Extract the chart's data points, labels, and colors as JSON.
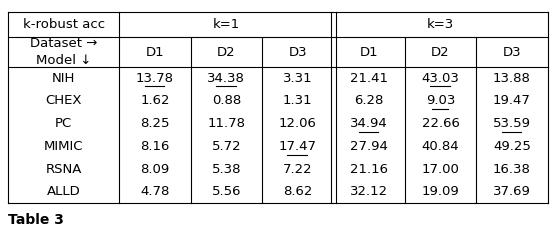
{
  "title": "Table 3",
  "rows": [
    [
      "NIH",
      "13.78",
      "34.38",
      "3.31",
      "21.41",
      "43.03",
      "13.88"
    ],
    [
      "CHEX",
      "1.62",
      "0.88",
      "1.31",
      "6.28",
      "9.03",
      "19.47"
    ],
    [
      "PC",
      "8.25",
      "11.78",
      "12.06",
      "34.94",
      "22.66",
      "53.59"
    ],
    [
      "MIMIC",
      "8.16",
      "5.72",
      "17.47",
      "27.94",
      "40.84",
      "49.25"
    ],
    [
      "RSNA",
      "8.09",
      "5.38",
      "7.22",
      "21.16",
      "17.00",
      "16.38"
    ],
    [
      "ALLD",
      "4.78",
      "5.56",
      "8.62",
      "32.12",
      "19.09",
      "37.69"
    ]
  ],
  "underlined": [
    [
      0,
      1
    ],
    [
      0,
      2
    ],
    [
      0,
      5
    ],
    [
      1,
      5
    ],
    [
      2,
      4
    ],
    [
      2,
      6
    ],
    [
      3,
      3
    ]
  ],
  "bg_color": "#ffffff",
  "text_color": "#000000",
  "font_size": 9.5,
  "figsize": [
    5.56,
    2.48
  ],
  "dpi": 100
}
